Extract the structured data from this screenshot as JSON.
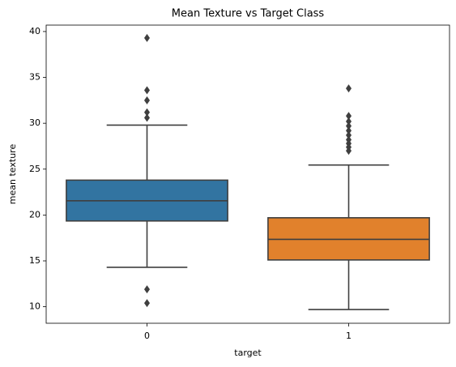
{
  "chart_data": {
    "type": "box",
    "title": "Mean Texture vs Target Class",
    "xlabel": "target",
    "ylabel": "mean texture",
    "categories": [
      "0",
      "1"
    ],
    "colors": [
      "#3274a1",
      "#e1812c"
    ],
    "boxes": [
      {
        "whislo": 14.3,
        "q1": 19.35,
        "med": 21.55,
        "q3": 23.8,
        "whishi": 29.8,
        "fliers": [
          39.3,
          33.6,
          32.5,
          31.2,
          30.6,
          11.9,
          10.4
        ]
      },
      {
        "whislo": 9.7,
        "q1": 15.1,
        "med": 17.35,
        "q3": 19.7,
        "whishi": 25.45,
        "fliers": [
          33.8,
          30.8,
          30.2,
          29.7,
          29.2,
          28.7,
          28.2,
          27.8,
          27.4,
          27.0
        ]
      }
    ],
    "ylim": [
      8.2,
      40.7
    ],
    "yticks": [
      10,
      15,
      20,
      25,
      30,
      35,
      40
    ],
    "grid": false
  }
}
